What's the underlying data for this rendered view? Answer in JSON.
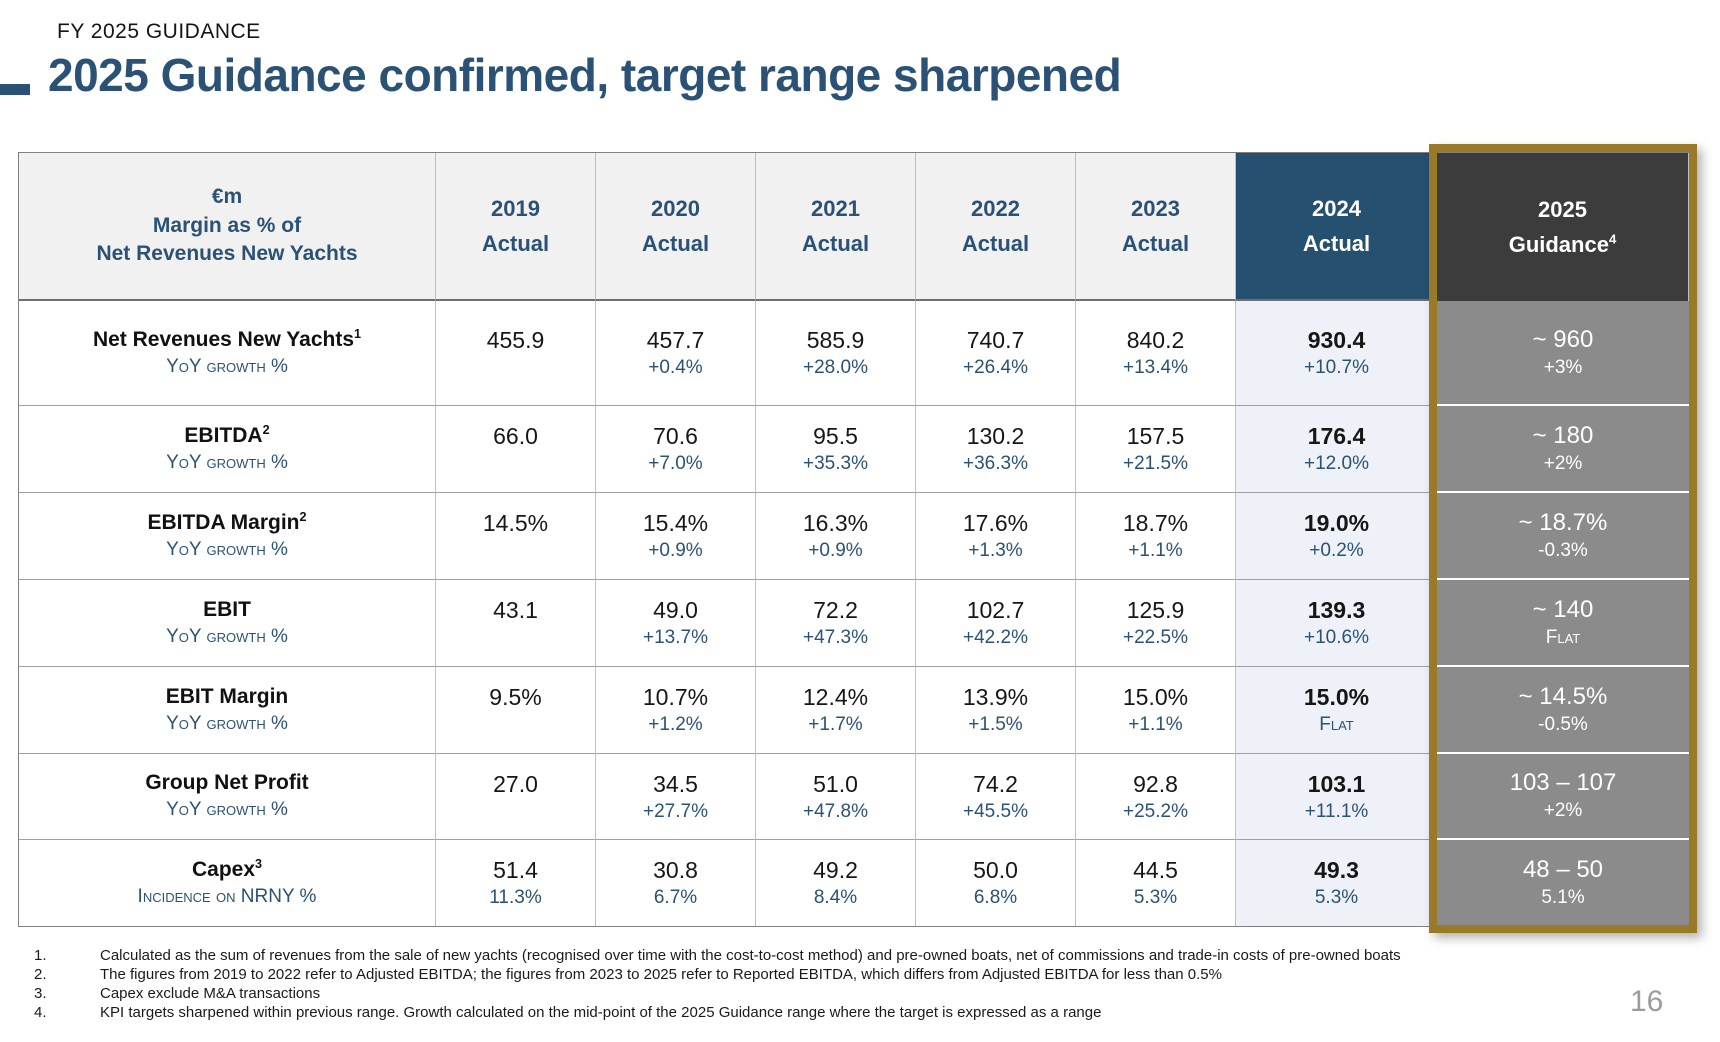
{
  "page": {
    "kicker": "FY 2025 GUIDANCE",
    "title": "2025 Guidance confirmed, target range sharpened",
    "page_number": "16"
  },
  "colors": {
    "title_navy": "#2B5274",
    "header_navy_2024": "#25506F",
    "header_charcoal_2025": "#3C3C3C",
    "guidance_gray_2025": "#8B8B8B",
    "highlight_gold_border": "#997A28",
    "body_2024_bg": "#EEF1F7",
    "header_gray_bg": "#F1F1F2",
    "growth_blue_text": "#2B5274"
  },
  "table": {
    "header": {
      "label_line1": "€m",
      "label_line2": "Margin as % of",
      "label_line3": "Net Revenues New Yachts",
      "columns": [
        {
          "year": "2019",
          "sub": "Actual",
          "sup": ""
        },
        {
          "year": "2020",
          "sub": "Actual",
          "sup": ""
        },
        {
          "year": "2021",
          "sub": "Actual",
          "sup": ""
        },
        {
          "year": "2022",
          "sub": "Actual",
          "sup": ""
        },
        {
          "year": "2023",
          "sub": "Actual",
          "sup": ""
        },
        {
          "year": "2024",
          "sub": "Actual",
          "sup": ""
        },
        {
          "year": "2025",
          "sub": "Guidance",
          "sup": "4"
        }
      ]
    },
    "rows": [
      {
        "label": "Net Revenues New Yachts",
        "sup": "1",
        "sublabel": "YoY growth %",
        "cells": [
          {
            "v": "455.9",
            "g": ""
          },
          {
            "v": "457.7",
            "g": "+0.4%"
          },
          {
            "v": "585.9",
            "g": "+28.0%"
          },
          {
            "v": "740.7",
            "g": "+26.4%"
          },
          {
            "v": "840.2",
            "g": "+13.4%"
          },
          {
            "v": "930.4",
            "g": "+10.7%"
          },
          {
            "v": "~ 960",
            "g": "+3%"
          }
        ]
      },
      {
        "label": "EBITDA",
        "sup": "2",
        "sublabel": "YoY growth %",
        "cells": [
          {
            "v": "66.0",
            "g": ""
          },
          {
            "v": "70.6",
            "g": "+7.0%"
          },
          {
            "v": "95.5",
            "g": "+35.3%"
          },
          {
            "v": "130.2",
            "g": "+36.3%"
          },
          {
            "v": "157.5",
            "g": "+21.5%"
          },
          {
            "v": "176.4",
            "g": "+12.0%"
          },
          {
            "v": "~ 180",
            "g": "+2%"
          }
        ]
      },
      {
        "label": "EBITDA Margin",
        "sup": "2",
        "sublabel": "YoY growth %",
        "cells": [
          {
            "v": "14.5%",
            "g": ""
          },
          {
            "v": "15.4%",
            "g": "+0.9%"
          },
          {
            "v": "16.3%",
            "g": "+0.9%"
          },
          {
            "v": "17.6%",
            "g": "+1.3%"
          },
          {
            "v": "18.7%",
            "g": "+1.1%"
          },
          {
            "v": "19.0%",
            "g": "+0.2%"
          },
          {
            "v": "~ 18.7%",
            "g": "-0.3%"
          }
        ]
      },
      {
        "label": "EBIT",
        "sup": "",
        "sublabel": "YoY growth %",
        "cells": [
          {
            "v": "43.1",
            "g": ""
          },
          {
            "v": "49.0",
            "g": "+13.7%"
          },
          {
            "v": "72.2",
            "g": "+47.3%"
          },
          {
            "v": "102.7",
            "g": "+42.2%"
          },
          {
            "v": "125.9",
            "g": "+22.5%"
          },
          {
            "v": "139.3",
            "g": "+10.6%"
          },
          {
            "v": "~ 140",
            "g": "Flat"
          }
        ]
      },
      {
        "label": "EBIT Margin",
        "sup": "",
        "sublabel": "YoY growth %",
        "cells": [
          {
            "v": "9.5%",
            "g": ""
          },
          {
            "v": "10.7%",
            "g": "+1.2%"
          },
          {
            "v": "12.4%",
            "g": "+1.7%"
          },
          {
            "v": "13.9%",
            "g": "+1.5%"
          },
          {
            "v": "15.0%",
            "g": "+1.1%"
          },
          {
            "v": "15.0%",
            "g": "Flat"
          },
          {
            "v": "~ 14.5%",
            "g": "-0.5%"
          }
        ]
      },
      {
        "label": "Group Net Profit",
        "sup": "",
        "sublabel": "YoY growth %",
        "cells": [
          {
            "v": "27.0",
            "g": ""
          },
          {
            "v": "34.5",
            "g": "+27.7%"
          },
          {
            "v": "51.0",
            "g": "+47.8%"
          },
          {
            "v": "74.2",
            "g": "+45.5%"
          },
          {
            "v": "92.8",
            "g": "+25.2%"
          },
          {
            "v": "103.1",
            "g": "+11.1%"
          },
          {
            "v": "103 – 107",
            "g": "+2%"
          }
        ]
      },
      {
        "label": "Capex",
        "sup": "3",
        "sublabel": "Incidence on NRNY %",
        "cells": [
          {
            "v": "51.4",
            "g": "11.3%"
          },
          {
            "v": "30.8",
            "g": "6.7%"
          },
          {
            "v": "49.2",
            "g": "8.4%"
          },
          {
            "v": "50.0",
            "g": "6.8%"
          },
          {
            "v": "44.5",
            "g": "5.3%"
          },
          {
            "v": "49.3",
            "g": "5.3%"
          },
          {
            "v": "48 – 50",
            "g": "5.1%"
          }
        ]
      }
    ]
  },
  "footnotes": [
    {
      "num": "1.",
      "text": "Calculated as the sum of revenues from the sale of new yachts (recognised over time with the cost-to-cost method) and pre-owned boats, net of commissions and trade-in costs of pre-owned boats"
    },
    {
      "num": "2.",
      "text": "The figures from 2019 to 2022 refer to Adjusted EBITDA; the figures from 2023 to 2025 refer to Reported EBITDA, which differs from Adjusted EBITDA for less than 0.5%"
    },
    {
      "num": "3.",
      "text": "Capex exclude M&A transactions"
    },
    {
      "num": "4.",
      "text": "KPI targets sharpened within previous range. Growth calculated on the mid-point of the 2025 Guidance range where the target is expressed as a range"
    }
  ]
}
